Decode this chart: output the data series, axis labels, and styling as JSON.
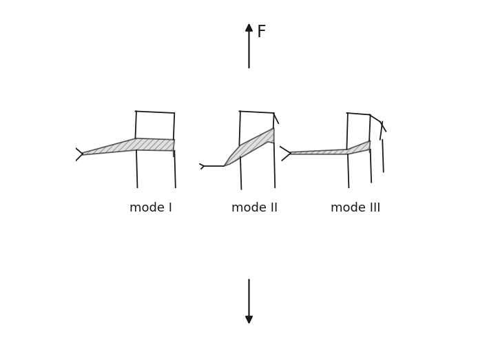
{
  "background_color": "#ffffff",
  "line_color": "#1a1a1a",
  "fill_color": "#d0d0d0",
  "fill_alpha": 0.65,
  "label_mode1": "mode I",
  "label_mode2": "mode II",
  "label_mode3": "mode III",
  "label_F": "F",
  "label_fontsize": 13,
  "figsize": [
    7.23,
    5.06
  ],
  "dpi": 100,
  "lw": 1.3,
  "hatch": "////",
  "hatch_lw": 0.4
}
